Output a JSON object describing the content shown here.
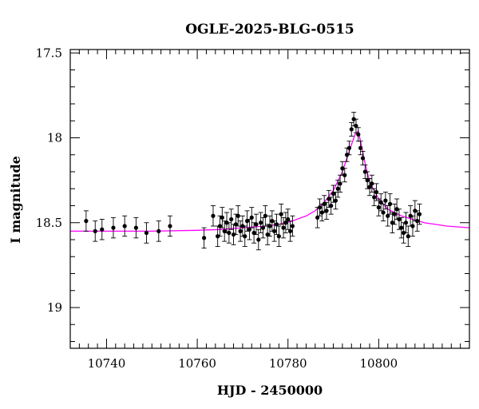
{
  "chart_data": {
    "type": "scatter",
    "title": "OGLE-2025-BLG-0515",
    "xlabel": "HJD - 2450000",
    "ylabel": "I magnitude",
    "xlim": [
      10732,
      10820
    ],
    "ylim": [
      19.24,
      17.48
    ],
    "y_inverted": true,
    "grid": false,
    "x_ticks": [
      10740,
      10760,
      10780,
      10800
    ],
    "y_ticks": [
      17.5,
      18,
      18.5,
      19
    ],
    "x_tick_labels": [
      "10740",
      "10760",
      "10780",
      "10800"
    ],
    "y_tick_labels": [
      "17.5",
      "18",
      "18.5",
      "19"
    ],
    "colors": {
      "points": "#000000",
      "model": "#ff00ff",
      "frame": "#000000"
    },
    "model": {
      "name": "",
      "color": "#ff00ff",
      "x": [
        10732,
        10740,
        10750,
        10760,
        10765,
        10770,
        10775,
        10778,
        10781,
        10784,
        10786,
        10788,
        10790,
        10792,
        10793,
        10794,
        10794.8,
        10795.5,
        10796,
        10797,
        10798,
        10800,
        10802,
        10805,
        10810,
        10815,
        10820
      ],
      "y": [
        18.55,
        18.55,
        18.55,
        18.545,
        18.54,
        18.53,
        18.52,
        18.51,
        18.49,
        18.46,
        18.43,
        18.38,
        18.31,
        18.2,
        18.12,
        18.04,
        17.98,
        17.96,
        18.02,
        18.15,
        18.26,
        18.36,
        18.42,
        18.46,
        18.5,
        18.52,
        18.53
      ]
    },
    "series": [
      {
        "name": "",
        "x": [
          10735.5,
          10737.5,
          10739,
          10741.5,
          10744,
          10746.5,
          10748.8,
          10751.5,
          10754,
          10761.5,
          10763.5,
          10764.5,
          10765,
          10765.5,
          10766,
          10766.5,
          10767,
          10767.5,
          10768,
          10768.5,
          10769,
          10769.5,
          10770,
          10770.5,
          10771,
          10771.5,
          10772,
          10772.5,
          10773,
          10773.5,
          10774,
          10774.5,
          10775,
          10775.5,
          10776,
          10776.5,
          10777,
          10777.5,
          10778,
          10778.5,
          10779,
          10779.5,
          10780,
          10780.5,
          10781,
          10786.5,
          10787,
          10787.5,
          10788,
          10788.5,
          10789,
          10789.5,
          10790,
          10790.5,
          10791,
          10791.5,
          10792,
          10792.5,
          10793,
          10793.5,
          10794,
          10794.5,
          10795,
          10795.5,
          10796,
          10796.5,
          10797,
          10797.5,
          10798,
          10798.5,
          10799,
          10799.5,
          10800,
          10800.5,
          10801,
          10801.5,
          10802,
          10802.5,
          10803,
          10803.5,
          10804,
          10804.5,
          10805,
          10805.5,
          10806,
          10806.5,
          10807,
          10807.5,
          10808,
          10808.5,
          10809
        ],
        "y": [
          18.49,
          18.55,
          18.54,
          18.53,
          18.52,
          18.53,
          18.56,
          18.55,
          18.52,
          18.59,
          18.46,
          18.58,
          18.52,
          18.47,
          18.55,
          18.5,
          18.56,
          18.48,
          18.57,
          18.51,
          18.46,
          18.55,
          18.52,
          18.58,
          18.49,
          18.54,
          18.47,
          18.56,
          18.51,
          18.6,
          18.5,
          18.53,
          18.46,
          18.57,
          18.52,
          18.49,
          18.55,
          18.51,
          18.58,
          18.45,
          18.53,
          18.5,
          18.48,
          18.55,
          18.52,
          18.47,
          18.41,
          18.44,
          18.39,
          18.43,
          18.36,
          18.4,
          18.33,
          18.37,
          18.3,
          18.27,
          18.18,
          18.22,
          18.1,
          18.06,
          17.95,
          17.89,
          17.93,
          17.98,
          18.06,
          18.12,
          18.2,
          18.25,
          18.29,
          18.27,
          18.35,
          18.32,
          18.41,
          18.38,
          18.44,
          18.37,
          18.46,
          18.39,
          18.5,
          18.45,
          18.42,
          18.48,
          18.53,
          18.56,
          18.5,
          18.58,
          18.46,
          18.52,
          18.43,
          18.49,
          18.45
        ],
        "yerr": [
          0.06,
          0.06,
          0.06,
          0.06,
          0.06,
          0.06,
          0.06,
          0.06,
          0.06,
          0.06,
          0.06,
          0.06,
          0.06,
          0.06,
          0.06,
          0.06,
          0.06,
          0.06,
          0.06,
          0.06,
          0.06,
          0.06,
          0.06,
          0.06,
          0.06,
          0.06,
          0.06,
          0.06,
          0.06,
          0.06,
          0.06,
          0.06,
          0.06,
          0.06,
          0.06,
          0.06,
          0.06,
          0.06,
          0.06,
          0.06,
          0.06,
          0.06,
          0.06,
          0.06,
          0.06,
          0.06,
          0.05,
          0.05,
          0.05,
          0.05,
          0.05,
          0.05,
          0.05,
          0.05,
          0.05,
          0.05,
          0.04,
          0.04,
          0.04,
          0.04,
          0.04,
          0.04,
          0.04,
          0.04,
          0.04,
          0.04,
          0.04,
          0.05,
          0.05,
          0.05,
          0.05,
          0.05,
          0.05,
          0.05,
          0.05,
          0.05,
          0.06,
          0.06,
          0.06,
          0.06,
          0.06,
          0.06,
          0.06,
          0.06,
          0.06,
          0.06,
          0.06,
          0.06,
          0.06,
          0.06,
          0.06
        ]
      }
    ]
  }
}
